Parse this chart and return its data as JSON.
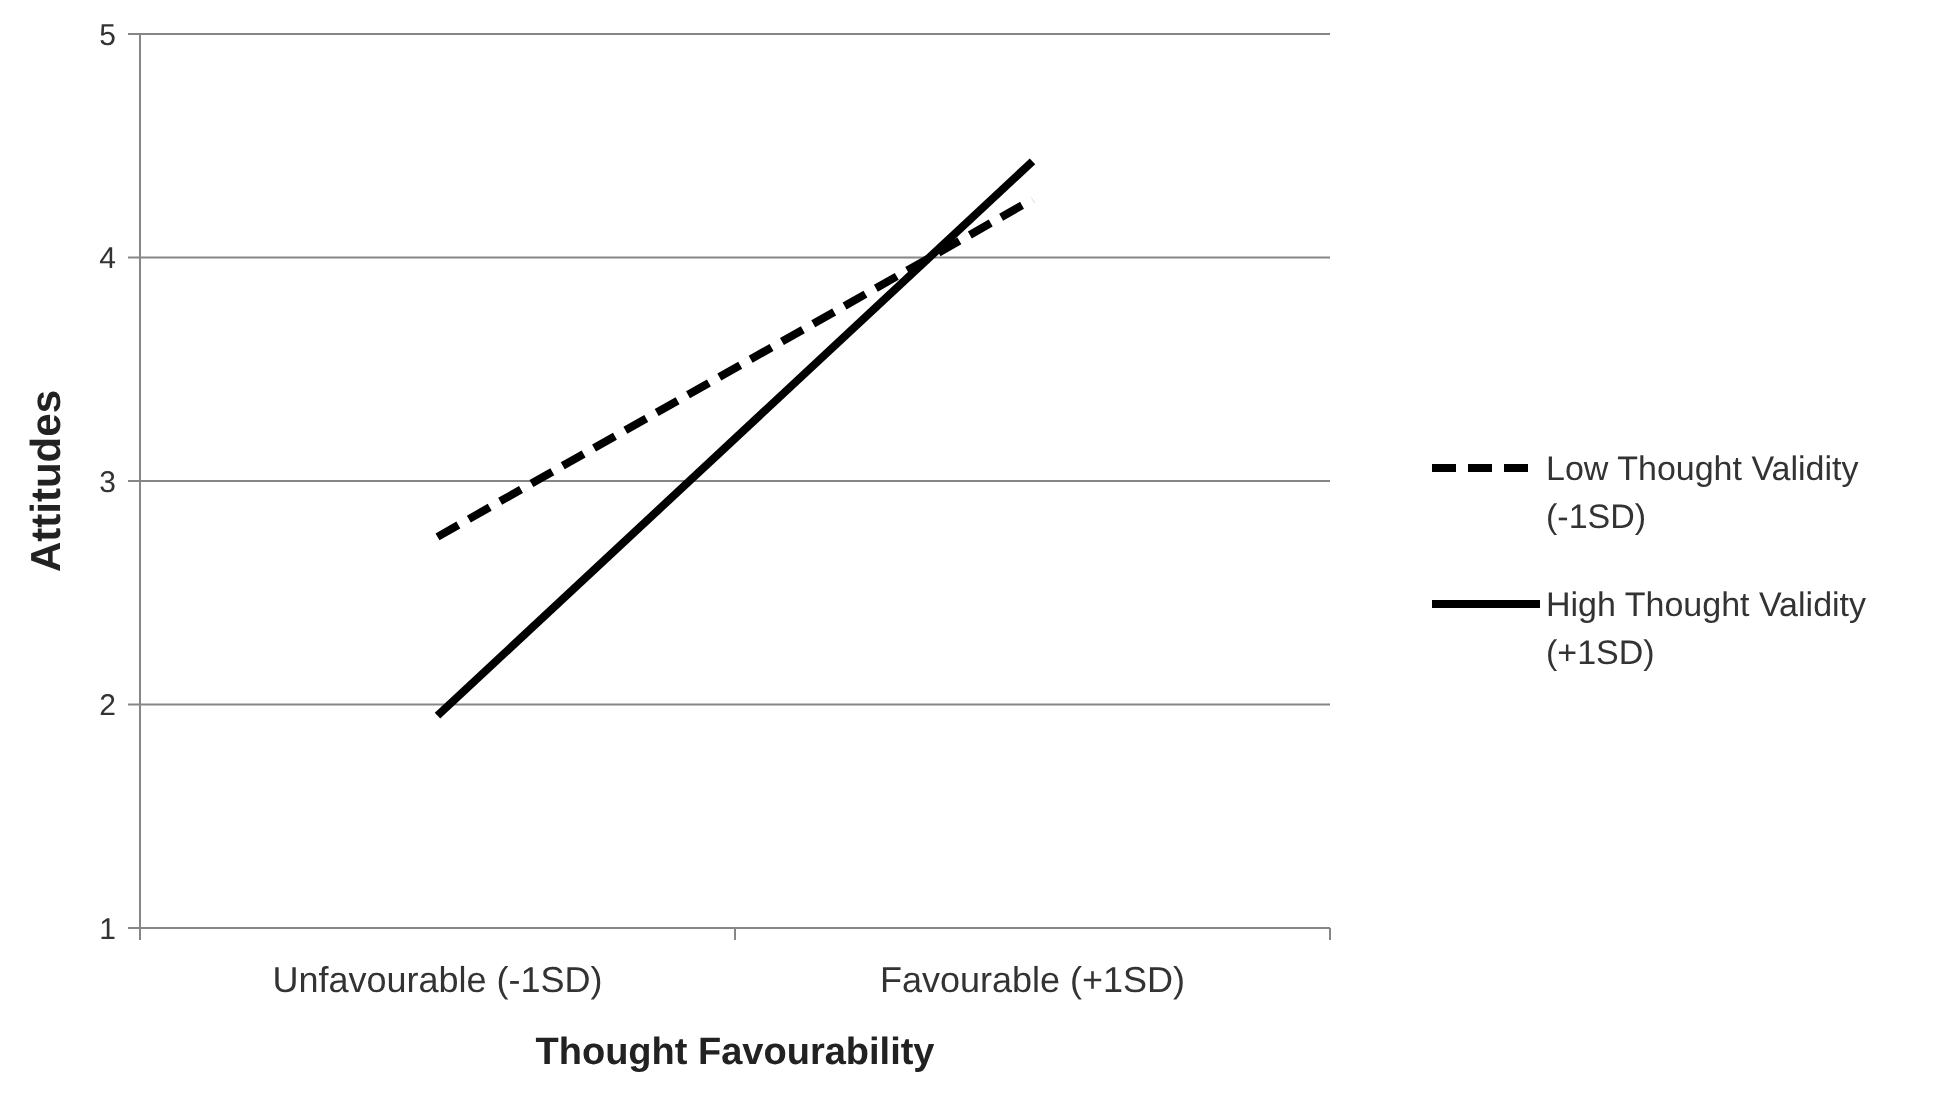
{
  "chart_data": {
    "type": "line",
    "xlabel": "Thought Favourability",
    "ylabel": "Attitudes",
    "categories": [
      "Unfavourable (-1SD)",
      "Favourable (+1SD)"
    ],
    "ylim": [
      1,
      5
    ],
    "yticks": [
      1,
      2,
      3,
      4,
      5
    ],
    "grid": "y",
    "legend": "right",
    "marker": "none",
    "series": [
      {
        "name": "Low Thought Validity (-1SD)",
        "color": "#000000",
        "line_style": "dashed",
        "values": [
          2.75,
          4.26
        ]
      },
      {
        "name": "High Thought Validity (+1SD)",
        "color": "#000000",
        "line_style": "solid",
        "values": [
          1.95,
          4.43
        ]
      }
    ]
  }
}
